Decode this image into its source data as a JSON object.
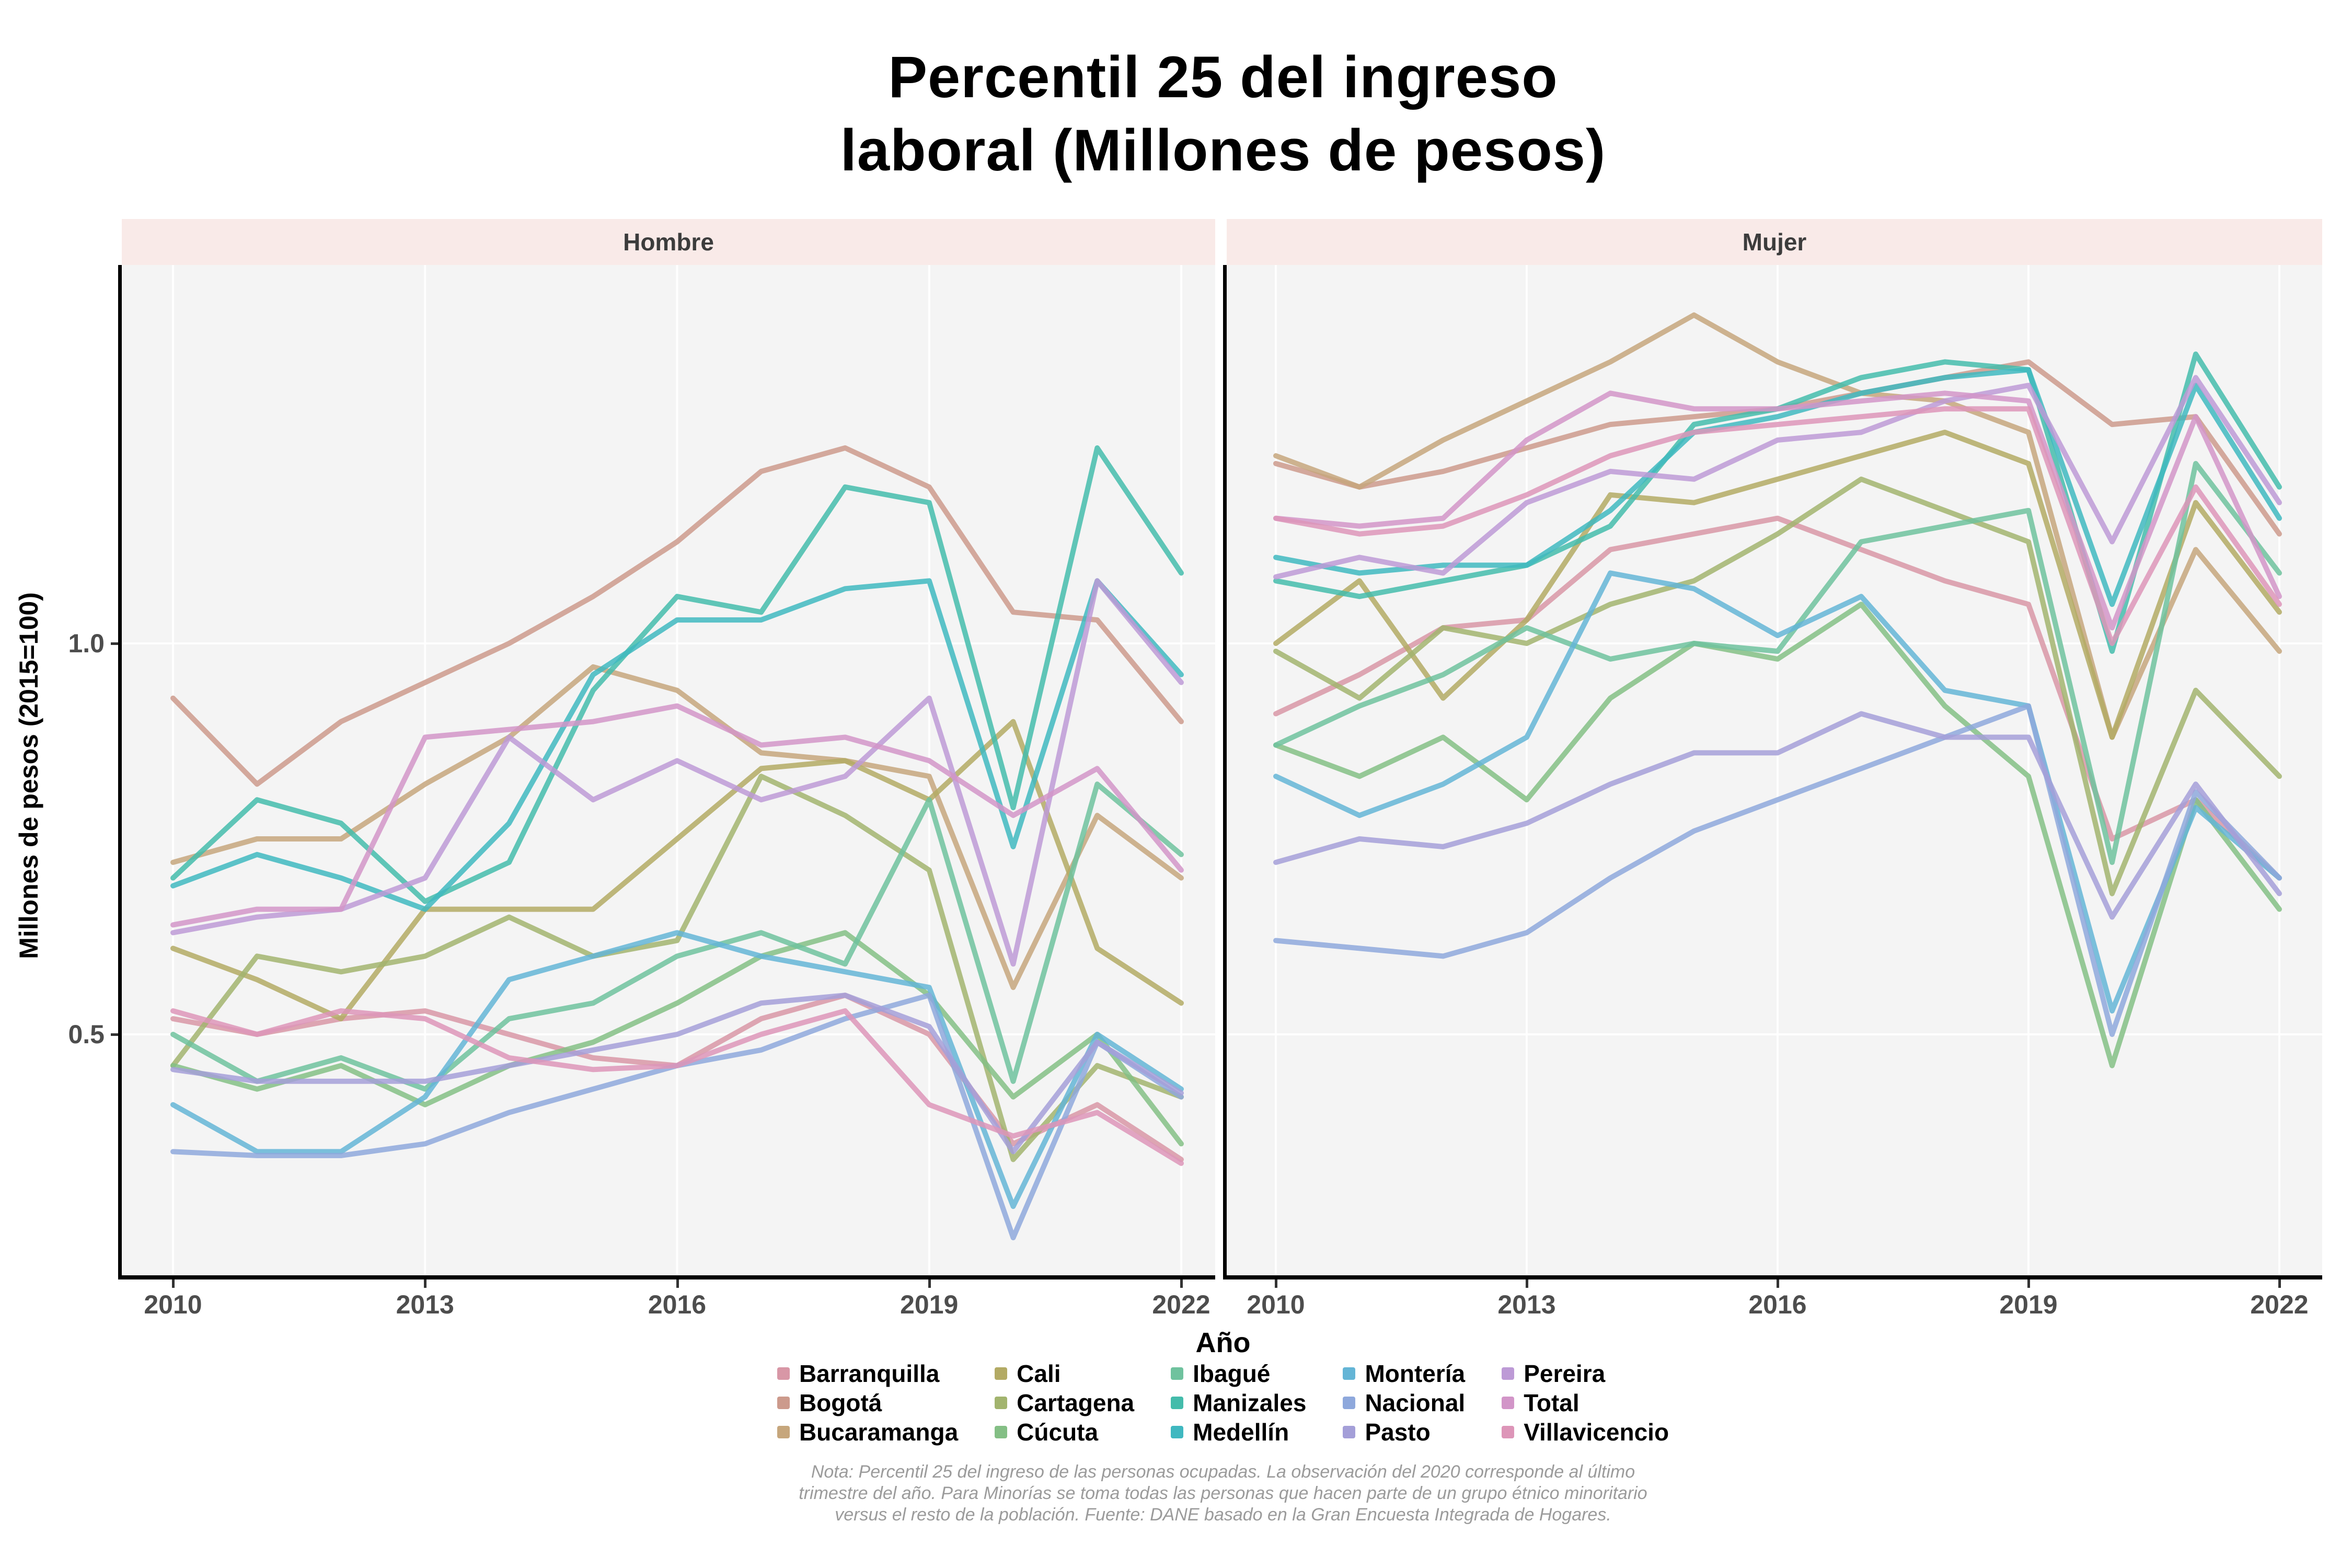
{
  "title": {
    "line1": "Percentil 25 del ingreso",
    "line2": "laboral (Millones de pesos)"
  },
  "facets": [
    {
      "label": "Hombre"
    },
    {
      "label": "Mujer"
    }
  ],
  "y_axis": {
    "label": "Millones de pesos (2015=100)",
    "ticks": [
      {
        "label": "1.0",
        "value": 1.0
      },
      {
        "label": "0.5",
        "value": 0.5
      }
    ]
  },
  "x_axis": {
    "label": "Año",
    "ticks": [
      {
        "label": "2010",
        "year": 2010
      },
      {
        "label": "2013",
        "year": 2013
      },
      {
        "label": "2016",
        "year": 2016
      },
      {
        "label": "2019",
        "year": 2019
      },
      {
        "label": "2022",
        "year": 2022
      }
    ]
  },
  "note": {
    "text": "Nota: Percentil 25 del ingreso de las personas ocupadas. La observación del 2020 corresponde al último trimestre del año. Para Minorías se toma todas las personas que hacen parte de un grupo étnico minoritario versus el resto de la población. Fuente: DANE basado en la Gran Encuesta Integrada de Hogares."
  },
  "style": {
    "strip_bg": "#f9eae8",
    "panel_bg": "#f4f4f4",
    "grid_color": "#ffffff",
    "axis_color": "#000000",
    "tick_text_color": "#4d4d4d",
    "note_color": "#9b9b9b",
    "line_opacity": 0.85
  },
  "palette": {
    "Barranquilla": "#d897a6",
    "Bogotá": "#cc9a8c",
    "Bucaramanga": "#c6a67c",
    "Cali": "#b3aa64",
    "Cartagena": "#a2b46e",
    "Cúcuta": "#84bf85",
    "Ibagué": "#6fc29e",
    "Manizales": "#44bcab",
    "Medellín": "#3fb8c0",
    "Montería": "#64b5d6",
    "Nacional": "#8ea8dc",
    "Pasto": "#a49fd8",
    "Pereira": "#bd9ad6",
    "Total": "#d295c8",
    "Villavicencio": "#dd95b8"
  },
  "legend": {
    "items": [
      "Barranquilla",
      "Bogotá",
      "Bucaramanga",
      "Cali",
      "Cartagena",
      "Cúcuta",
      "Ibagué",
      "Manizales",
      "Medellín",
      "Montería",
      "Nacional",
      "Pasto",
      "Pereira",
      "Total",
      "Villavicencio"
    ]
  },
  "chart_data": [
    {
      "type": "line",
      "facet": "Hombre",
      "xlabel": "Año",
      "ylabel": "Millones de pesos (2015=100)",
      "x": [
        2010,
        2011,
        2012,
        2013,
        2014,
        2015,
        2016,
        2017,
        2018,
        2019,
        2020,
        2021,
        2022
      ],
      "ylim_displayed": [
        0.19,
        1.48
      ],
      "grid": "major",
      "series": [
        {
          "name": "Barranquilla",
          "values": [
            0.52,
            0.5,
            0.52,
            0.53,
            0.5,
            0.47,
            0.46,
            0.52,
            0.55,
            0.5,
            0.36,
            0.41,
            0.34
          ]
        },
        {
          "name": "Bogotá",
          "values": [
            0.93,
            0.82,
            0.9,
            0.95,
            1.0,
            1.06,
            1.13,
            1.22,
            1.25,
            1.2,
            1.04,
            1.03,
            0.9
          ]
        },
        {
          "name": "Bucaramanga",
          "values": [
            0.72,
            0.75,
            0.75,
            0.82,
            0.88,
            0.97,
            0.94,
            0.86,
            0.85,
            0.83,
            0.56,
            0.78,
            0.7
          ]
        },
        {
          "name": "Cali",
          "values": [
            0.61,
            0.57,
            0.52,
            0.66,
            0.66,
            0.66,
            0.75,
            0.84,
            0.85,
            0.8,
            0.9,
            0.61,
            0.54
          ]
        },
        {
          "name": "Cartagena",
          "values": [
            0.46,
            0.6,
            0.58,
            0.6,
            0.65,
            0.6,
            0.62,
            0.83,
            0.78,
            0.71,
            0.34,
            0.46,
            0.42
          ]
        },
        {
          "name": "Cúcuta",
          "values": [
            0.46,
            0.43,
            0.46,
            0.41,
            0.46,
            0.49,
            0.54,
            0.6,
            0.63,
            0.55,
            0.42,
            0.5,
            0.36
          ]
        },
        {
          "name": "Ibagué",
          "values": [
            0.5,
            0.44,
            0.47,
            0.43,
            0.52,
            0.54,
            0.6,
            0.63,
            0.59,
            0.8,
            0.44,
            0.82,
            0.73
          ]
        },
        {
          "name": "Manizales",
          "values": [
            0.7,
            0.8,
            0.77,
            0.67,
            0.72,
            0.94,
            1.06,
            1.04,
            1.2,
            1.18,
            0.79,
            1.25,
            1.09
          ]
        },
        {
          "name": "Medellín",
          "values": [
            0.69,
            0.73,
            0.7,
            0.66,
            0.77,
            0.96,
            1.03,
            1.03,
            1.07,
            1.08,
            0.74,
            1.08,
            0.96
          ]
        },
        {
          "name": "Montería",
          "values": [
            0.41,
            0.35,
            0.35,
            0.42,
            0.57,
            0.6,
            0.63,
            0.6,
            0.58,
            0.56,
            0.28,
            0.5,
            0.43
          ]
        },
        {
          "name": "Nacional",
          "values": [
            0.35,
            0.345,
            0.345,
            0.36,
            0.4,
            0.43,
            0.46,
            0.48,
            0.52,
            0.55,
            0.24,
            0.49,
            0.42
          ]
        },
        {
          "name": "Pasto",
          "values": [
            0.455,
            0.44,
            0.44,
            0.44,
            0.46,
            0.48,
            0.5,
            0.54,
            0.55,
            0.51,
            0.35,
            0.49,
            0.425
          ]
        },
        {
          "name": "Pereira",
          "values": [
            0.63,
            0.65,
            0.66,
            0.7,
            0.88,
            0.8,
            0.85,
            0.8,
            0.83,
            0.93,
            0.59,
            1.08,
            0.95
          ]
        },
        {
          "name": "Total",
          "values": [
            0.64,
            0.66,
            0.66,
            0.88,
            0.89,
            0.9,
            0.92,
            0.87,
            0.88,
            0.85,
            0.78,
            0.84,
            0.71
          ]
        },
        {
          "name": "Villavicencio",
          "values": [
            0.53,
            0.5,
            0.53,
            0.52,
            0.47,
            0.455,
            0.46,
            0.5,
            0.53,
            0.41,
            0.37,
            0.4,
            0.335
          ]
        }
      ]
    },
    {
      "type": "line",
      "facet": "Mujer",
      "xlabel": "Año",
      "ylabel": "Millones de pesos (2015=100)",
      "x": [
        2010,
        2011,
        2012,
        2013,
        2014,
        2015,
        2016,
        2017,
        2018,
        2019,
        2020,
        2021,
        2022
      ],
      "ylim_displayed": [
        0.19,
        1.48
      ],
      "grid": "major",
      "series": [
        {
          "name": "Barranquilla",
          "values": [
            0.91,
            0.96,
            1.02,
            1.03,
            1.12,
            1.14,
            1.16,
            1.12,
            1.08,
            1.05,
            0.75,
            0.8,
            0.7
          ]
        },
        {
          "name": "Bogotá",
          "values": [
            1.23,
            1.2,
            1.22,
            1.25,
            1.28,
            1.29,
            1.3,
            1.32,
            1.34,
            1.36,
            1.28,
            1.29,
            1.14
          ]
        },
        {
          "name": "Bucaramanga",
          "values": [
            1.24,
            1.2,
            1.26,
            1.31,
            1.36,
            1.42,
            1.36,
            1.32,
            1.31,
            1.27,
            0.88,
            1.12,
            0.99
          ]
        },
        {
          "name": "Cali",
          "values": [
            1.0,
            1.08,
            0.93,
            1.03,
            1.19,
            1.18,
            1.21,
            1.24,
            1.27,
            1.23,
            0.88,
            1.18,
            1.04
          ]
        },
        {
          "name": "Cartagena",
          "values": [
            0.99,
            0.93,
            1.02,
            1.0,
            1.05,
            1.08,
            1.14,
            1.21,
            1.17,
            1.13,
            0.68,
            0.94,
            0.83
          ]
        },
        {
          "name": "Cúcuta",
          "values": [
            0.87,
            0.83,
            0.88,
            0.8,
            0.93,
            1.0,
            0.98,
            1.05,
            0.92,
            0.83,
            0.46,
            0.8,
            0.66
          ]
        },
        {
          "name": "Ibagué",
          "values": [
            0.87,
            0.92,
            0.96,
            1.02,
            0.98,
            1.0,
            0.99,
            1.13,
            1.15,
            1.17,
            0.72,
            1.23,
            1.09
          ]
        },
        {
          "name": "Manizales",
          "values": [
            1.08,
            1.06,
            1.08,
            1.1,
            1.15,
            1.28,
            1.3,
            1.34,
            1.36,
            1.35,
            0.99,
            1.37,
            1.2
          ]
        },
        {
          "name": "Medellín",
          "values": [
            1.11,
            1.09,
            1.1,
            1.1,
            1.17,
            1.27,
            1.29,
            1.32,
            1.34,
            1.35,
            1.05,
            1.33,
            1.16
          ]
        },
        {
          "name": "Montería",
          "values": [
            0.83,
            0.78,
            0.82,
            0.88,
            1.09,
            1.07,
            1.01,
            1.06,
            0.94,
            0.92,
            0.53,
            0.79,
            0.7
          ]
        },
        {
          "name": "Nacional",
          "values": [
            0.62,
            0.61,
            0.6,
            0.63,
            0.7,
            0.76,
            0.8,
            0.84,
            0.88,
            0.92,
            0.5,
            0.81,
            0.7
          ]
        },
        {
          "name": "Pasto",
          "values": [
            0.72,
            0.75,
            0.74,
            0.77,
            0.82,
            0.86,
            0.86,
            0.91,
            0.88,
            0.88,
            0.65,
            0.82,
            0.68
          ]
        },
        {
          "name": "Pereira",
          "values": [
            1.085,
            1.11,
            1.09,
            1.18,
            1.22,
            1.21,
            1.26,
            1.27,
            1.31,
            1.33,
            1.13,
            1.34,
            1.18
          ]
        },
        {
          "name": "Total",
          "values": [
            1.16,
            1.15,
            1.16,
            1.26,
            1.32,
            1.3,
            1.3,
            1.31,
            1.32,
            1.31,
            1.02,
            1.29,
            1.06
          ]
        },
        {
          "name": "Villavicencio",
          "values": [
            1.16,
            1.14,
            1.15,
            1.19,
            1.24,
            1.27,
            1.28,
            1.29,
            1.3,
            1.3,
            1.0,
            1.2,
            1.05
          ]
        }
      ]
    }
  ]
}
